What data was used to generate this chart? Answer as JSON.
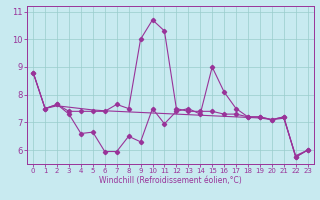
{
  "xlabel": "Windchill (Refroidissement éolien,°C)",
  "bg_color": "#c8eaf0",
  "line_color": "#993399",
  "grid_color": "#99cccc",
  "x": [
    0,
    1,
    2,
    3,
    4,
    5,
    6,
    7,
    8,
    9,
    10,
    11,
    12,
    13,
    14,
    15,
    16,
    17,
    18,
    19,
    20,
    21,
    22,
    23
  ],
  "line1": [
    8.8,
    7.5,
    7.65,
    7.3,
    6.6,
    6.65,
    5.95,
    5.95,
    6.5,
    6.3,
    7.5,
    6.95,
    7.4,
    7.5,
    7.3,
    9.0,
    8.1,
    7.5,
    7.2,
    7.2,
    7.1,
    7.2,
    5.75,
    6.0
  ],
  "line2": [
    8.8,
    7.5,
    7.65,
    7.4,
    7.4,
    7.4,
    7.4,
    7.65,
    7.5,
    10.0,
    10.7,
    10.3,
    7.5,
    7.4,
    7.4,
    7.4,
    7.3,
    7.3,
    7.2,
    7.2,
    7.1,
    7.2,
    5.75,
    6.0
  ],
  "line3": [
    8.8,
    7.5,
    7.6,
    7.55,
    7.5,
    7.45,
    7.42,
    7.4,
    7.38,
    7.36,
    7.34,
    7.32,
    7.3,
    7.28,
    7.26,
    7.24,
    7.22,
    7.2,
    7.18,
    7.16,
    7.1,
    7.15,
    5.8,
    6.0
  ],
  "ylim": [
    5.5,
    11.2
  ],
  "yticks": [
    6,
    7,
    8,
    9,
    10,
    11
  ],
  "xticks": [
    0,
    1,
    2,
    3,
    4,
    5,
    6,
    7,
    8,
    9,
    10,
    11,
    12,
    13,
    14,
    15,
    16,
    17,
    18,
    19,
    20,
    21,
    22,
    23
  ]
}
